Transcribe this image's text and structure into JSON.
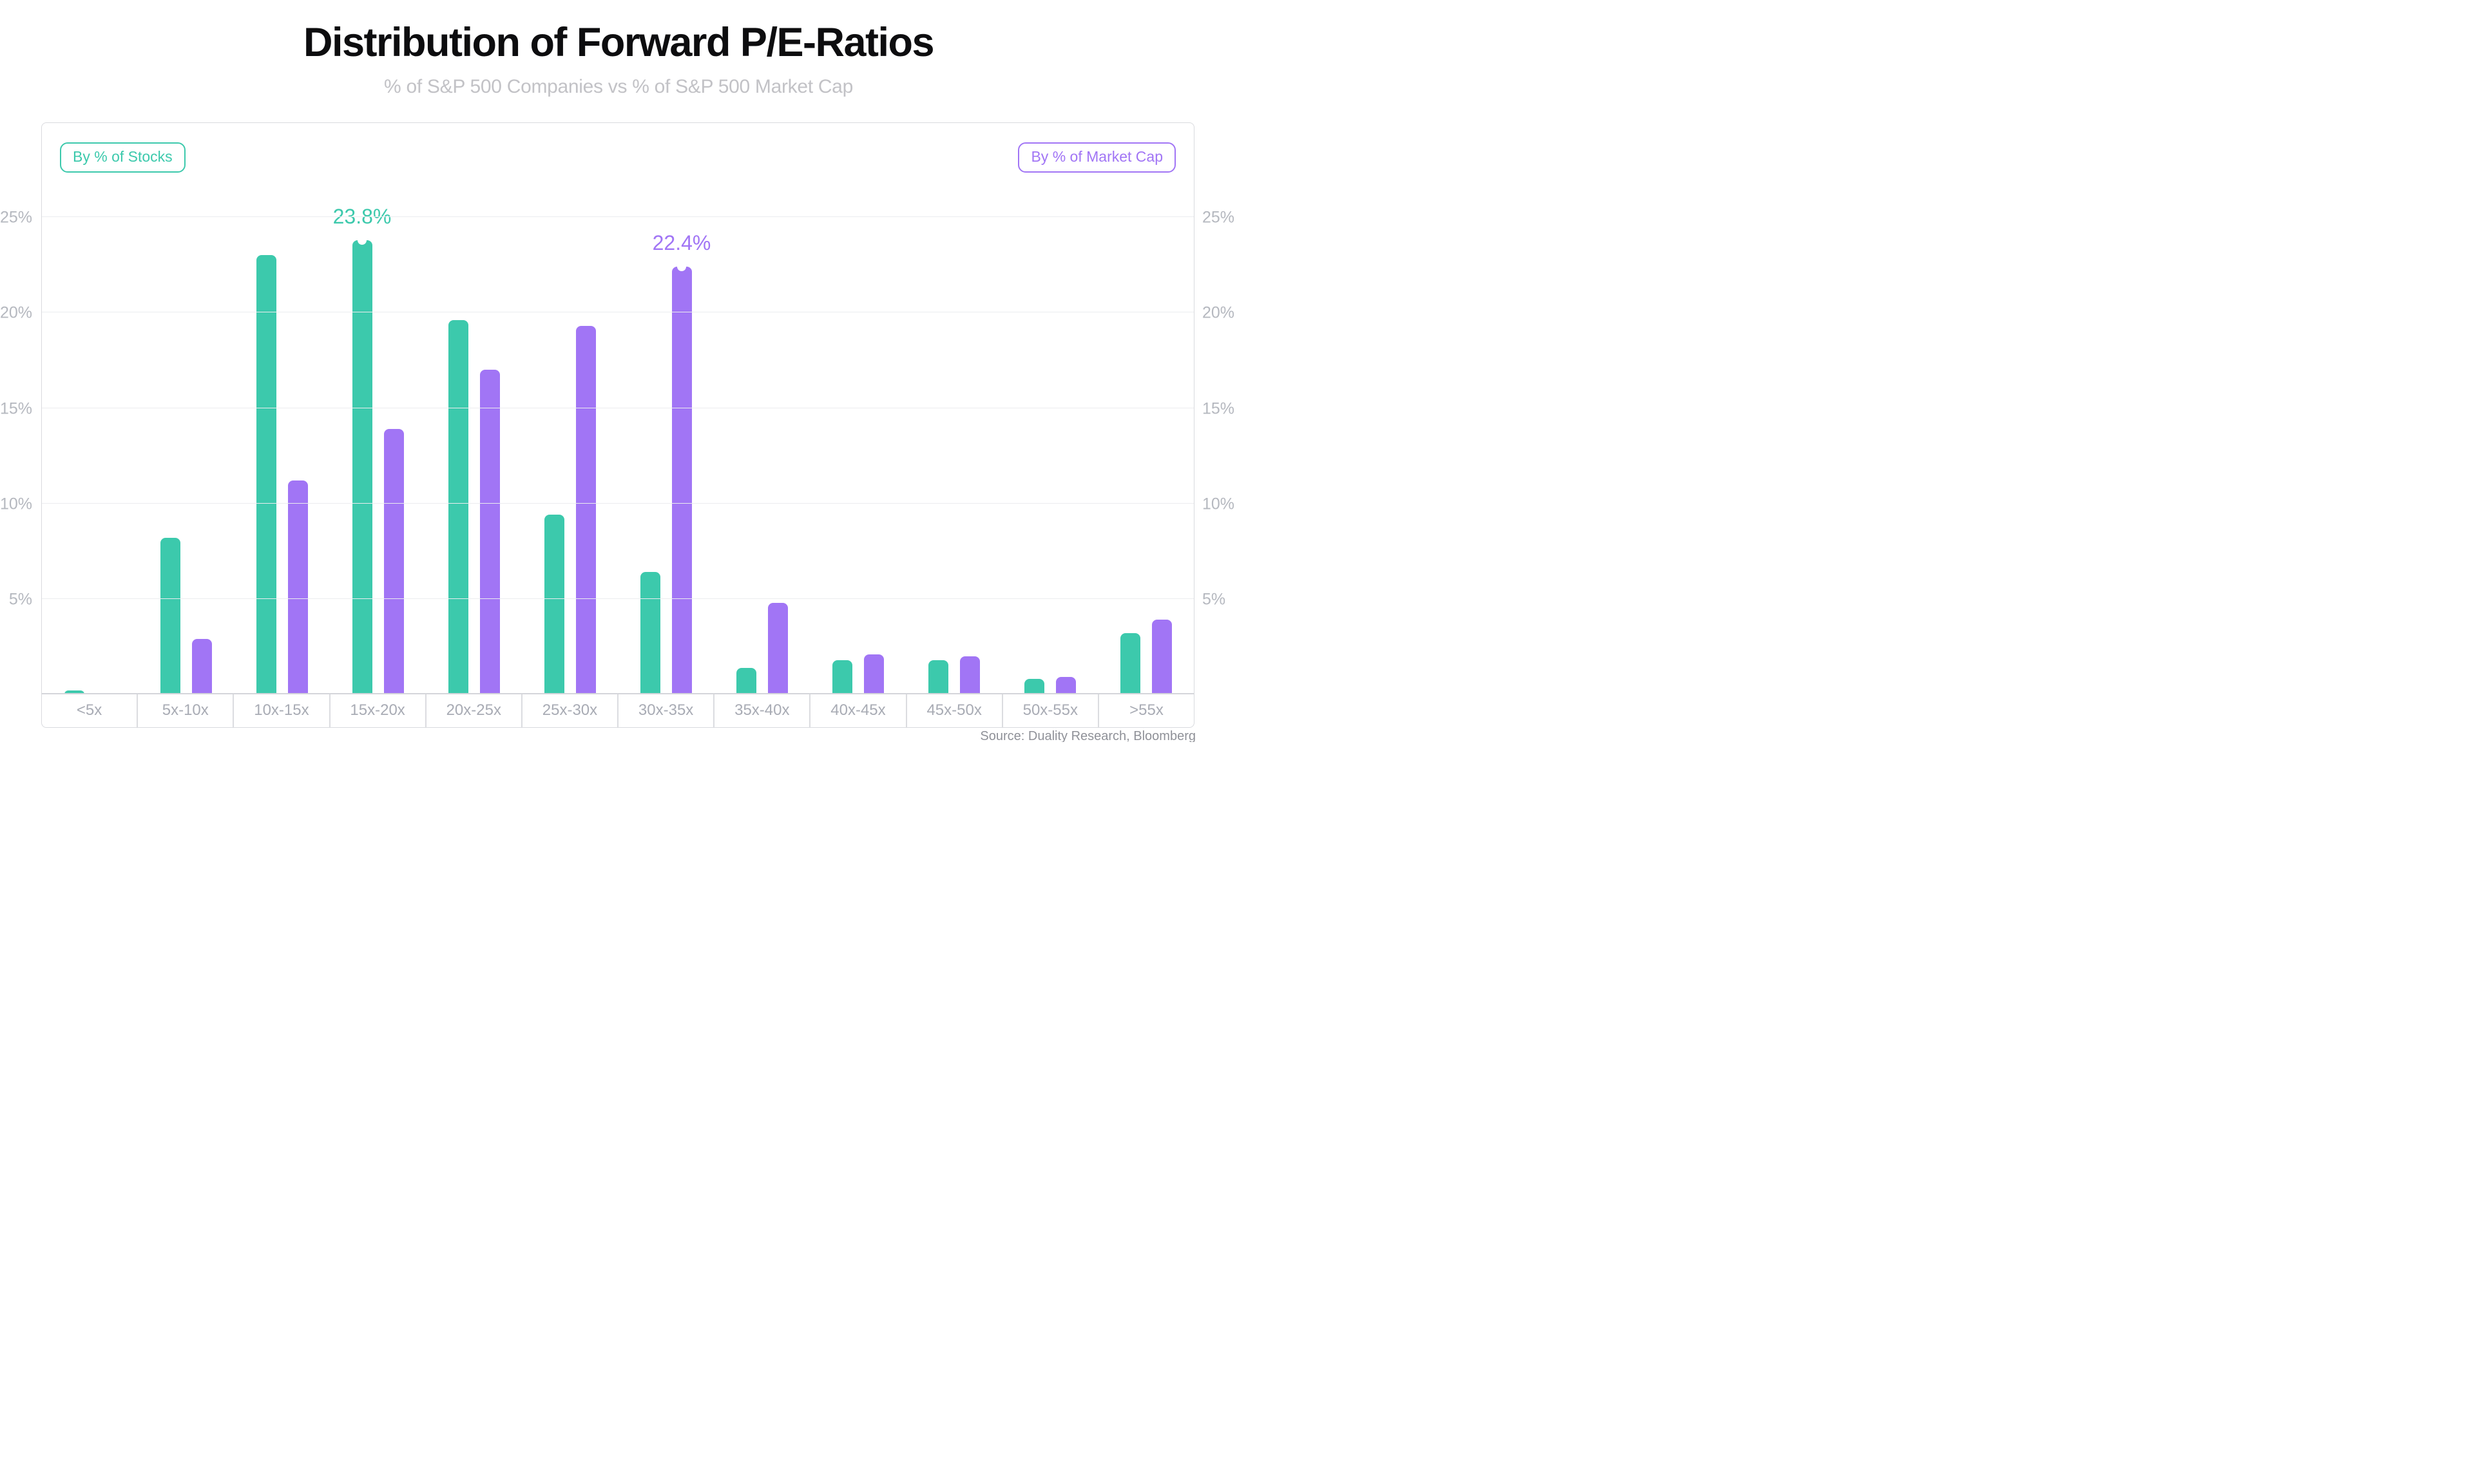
{
  "header": {
    "title": "Distribution of Forward P/E-Ratios",
    "subtitle": "% of S&P 500 Companies vs % of S&P 500 Market Cap"
  },
  "legend": {
    "stocks_label": "By % of Stocks",
    "market_cap_label": "By % of Market Cap"
  },
  "source_note": "Source: Duality Research, Bloomberg",
  "colors": {
    "stocks": "#3cc9ac",
    "market_cap": "#a175f5",
    "gridline": "#ebecef",
    "axis_text": "#b5b8bf",
    "x_label_text": "#a8abb4"
  },
  "chart_data": {
    "type": "bar",
    "categories": [
      "<5x",
      "5x-10x",
      "10x-15x",
      "15x-20x",
      "20x-25x",
      "25x-30x",
      "30x-35x",
      "35x-40x",
      "40x-45x",
      "45x-50x",
      "50x-55x",
      ">55x"
    ],
    "series": [
      {
        "name": "By % of Stocks",
        "color": "#3cc9ac",
        "values": [
          0.2,
          8.2,
          23.0,
          23.8,
          19.6,
          9.4,
          6.4,
          1.4,
          1.8,
          1.8,
          0.8,
          3.2
        ]
      },
      {
        "name": "By % of Market Cap",
        "color": "#a175f5",
        "values": [
          0.0,
          2.9,
          11.2,
          13.9,
          17.0,
          19.3,
          22.4,
          4.8,
          2.1,
          2.0,
          0.9,
          3.9
        ]
      }
    ],
    "annotations": [
      {
        "series_index": 0,
        "category_index": 3,
        "label": "23.8%"
      },
      {
        "series_index": 1,
        "category_index": 6,
        "label": "22.4%"
      }
    ],
    "title": "Distribution of Forward P/E-Ratios",
    "subtitle": "% of S&P 500 Companies vs % of S&P 500 Market Cap",
    "xlabel": "",
    "ylabel": "",
    "y_ticks": [
      5,
      10,
      15,
      20,
      25
    ],
    "y_tick_suffix": "%",
    "ylim": [
      0,
      30
    ],
    "grid": true,
    "dual_y_axis": true,
    "legend_position": "top-left and top-right chips"
  }
}
